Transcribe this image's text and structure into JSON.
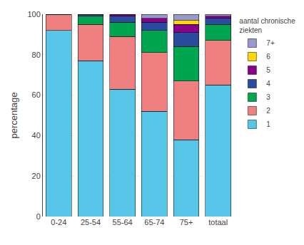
{
  "chart_data": {
    "type": "bar",
    "stacked": true,
    "categories": [
      "0-24",
      "25-54",
      "55-64",
      "65-74",
      "75+",
      "totaal"
    ],
    "series": [
      {
        "name": "1",
        "color": "#56C5E8",
        "values": [
          92,
          77,
          63,
          52,
          38,
          65
        ]
      },
      {
        "name": "2",
        "color": "#F08080",
        "values": [
          8,
          18,
          26,
          29,
          29,
          22
        ]
      },
      {
        "name": "3",
        "color": "#00A550",
        "values": [
          0,
          4,
          7,
          11,
          17,
          8
        ]
      },
      {
        "name": "4",
        "color": "#2B4BA0",
        "values": [
          0,
          1,
          3,
          4,
          7,
          3
        ]
      },
      {
        "name": "5",
        "color": "#8B008B",
        "values": [
          0,
          0,
          1,
          2,
          4,
          1
        ]
      },
      {
        "name": "6",
        "color": "#FFD700",
        "values": [
          0,
          0,
          0,
          0,
          2,
          0
        ]
      },
      {
        "name": "7+",
        "color": "#9999CC",
        "values": [
          0,
          0,
          0,
          2,
          3,
          1
        ]
      }
    ],
    "ylabel": "percentage",
    "legend_title": "aantal chronische\nziekten",
    "ylim": [
      0,
      100
    ],
    "yticks": [
      0,
      20,
      40,
      60,
      80,
      100
    ],
    "grid": true,
    "legend": "right"
  }
}
